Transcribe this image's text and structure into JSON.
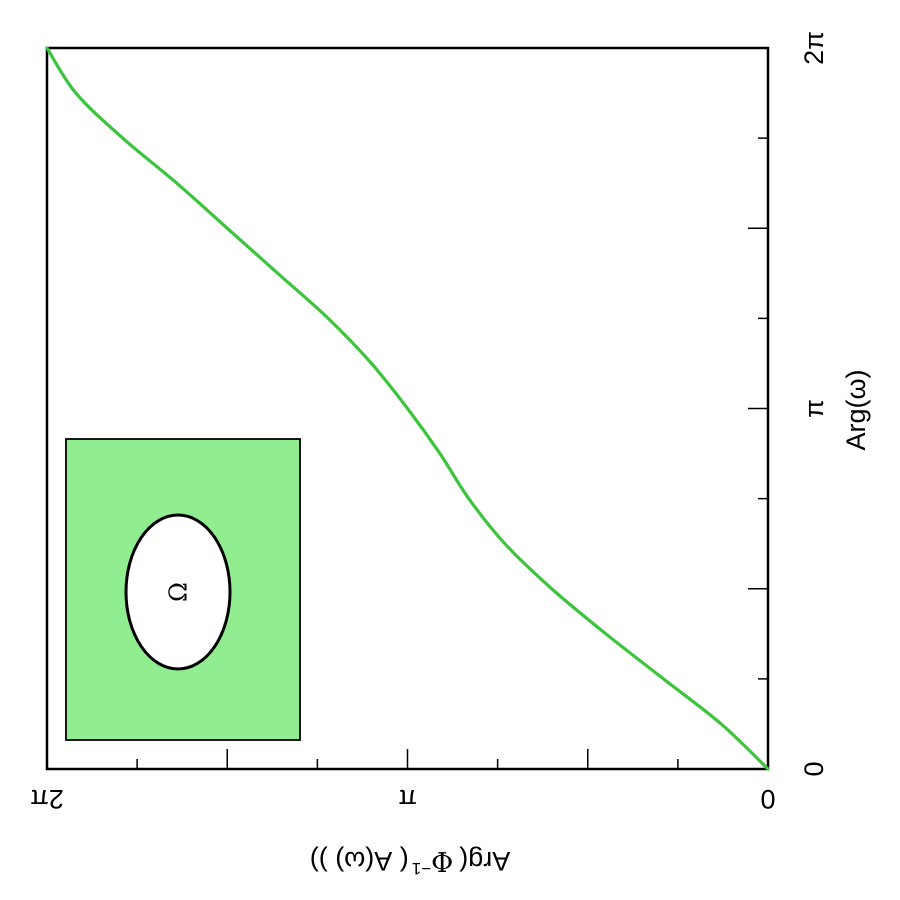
{
  "chart_data": {
    "type": "line",
    "orientation": "rotated 90 degrees counter-clockwise",
    "xlabel": "Arg(ω)",
    "ylabel": "Arg( Φ⁻¹( A(ω) ))",
    "ylabel_parts": {
      "prefix": "Arg(",
      "phi": "Φ",
      "sup": "−1",
      "middle": "(  A(ω)  ))"
    },
    "x_ticks": [
      "0",
      "π",
      "2π"
    ],
    "y_ticks": [
      "0",
      "π",
      "2π"
    ],
    "xlim_over_pi": [
      0,
      2
    ],
    "ylim_over_pi": [
      0,
      2
    ],
    "minor_tick_step_over_pi": 0.25,
    "series": [
      {
        "color": "#3cc43c",
        "x_over_pi": [
          0,
          0.125,
          0.25,
          0.375,
          0.5,
          0.625,
          0.75,
          0.875,
          1.0,
          1.125,
          1.25,
          1.375,
          1.5,
          1.625,
          1.75,
          1.875,
          2.0
        ],
        "y_over_pi": [
          0,
          0.13,
          0.29,
          0.45,
          0.6,
          0.73,
          0.83,
          0.91,
          1.0,
          1.1,
          1.22,
          1.36,
          1.5,
          1.64,
          1.79,
          1.92,
          2.0
        ]
      }
    ],
    "inset": {
      "fill_color": "#90ee90",
      "hole_color": "#ffffff",
      "hole_label": "Ω"
    }
  }
}
